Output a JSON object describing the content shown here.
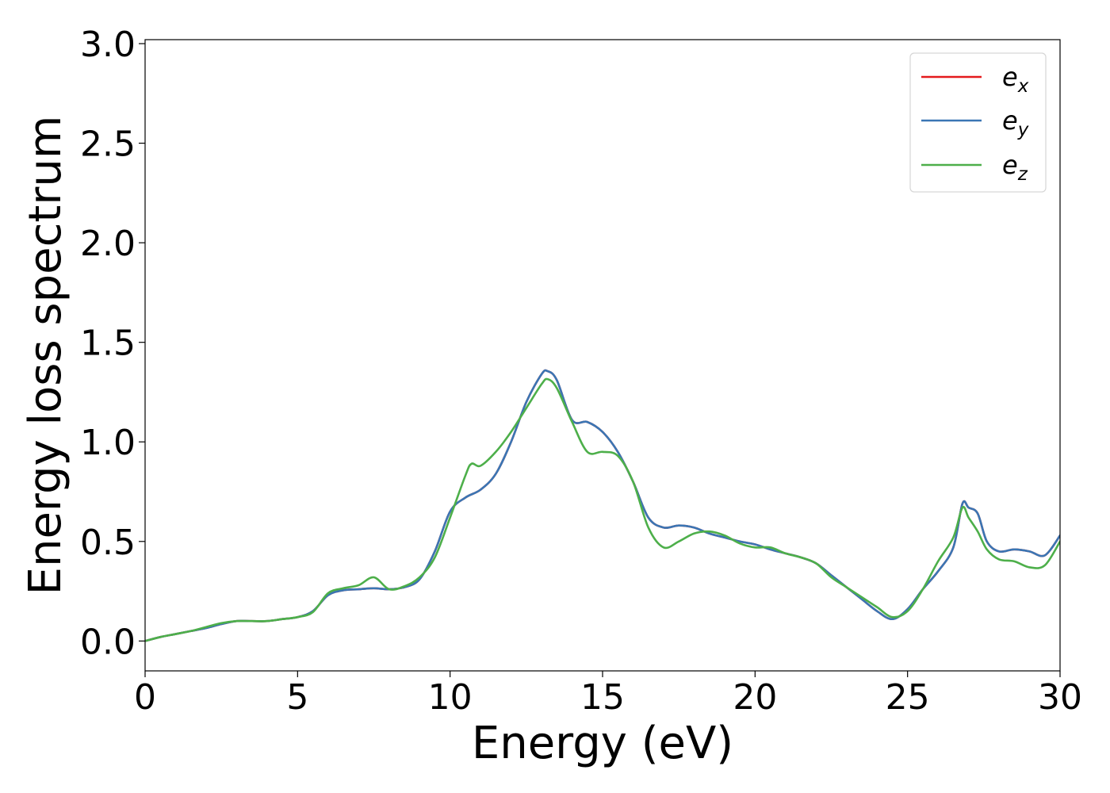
{
  "chart_data": {
    "type": "line",
    "title": "",
    "xlabel": "Energy (eV)",
    "ylabel": "Energy loss spectrum",
    "xlim": [
      0,
      30
    ],
    "ylim": [
      -0.15,
      3.02
    ],
    "xticks": [
      0,
      5,
      10,
      15,
      20,
      25,
      30
    ],
    "xtick_labels": [
      "0",
      "5",
      "10",
      "15",
      "20",
      "25",
      "30"
    ],
    "yticks": [
      0.0,
      0.5,
      1.0,
      1.5,
      2.0,
      2.5,
      3.0
    ],
    "ytick_labels": [
      "0.0",
      "0.5",
      "1.0",
      "1.5",
      "2.0",
      "2.5",
      "3.0"
    ],
    "grid": false,
    "legend_position": "top-right",
    "series": [
      {
        "name": "e_x",
        "label_base": "e",
        "label_sub": "x",
        "color": "#e41a1c",
        "x": [
          0,
          0.5,
          1,
          1.5,
          2,
          2.5,
          3,
          3.5,
          4,
          4.5,
          5,
          5.5,
          6,
          6.5,
          7,
          7.5,
          8,
          8.5,
          9,
          9.5,
          10,
          10.5,
          11,
          11.5,
          12,
          12.5,
          13,
          13.2,
          13.5,
          14,
          14.5,
          15,
          15.5,
          16,
          16.5,
          17,
          17.5,
          18,
          18.5,
          19,
          19.5,
          20,
          20.5,
          21,
          21.5,
          22,
          22.5,
          23,
          23.5,
          24,
          24.5,
          25,
          25.5,
          26,
          26.5,
          26.8,
          27,
          27.3,
          27.6,
          28,
          28.5,
          29,
          29.5,
          30
        ],
        "y": [
          0.0,
          0.02,
          0.035,
          0.05,
          0.065,
          0.085,
          0.1,
          0.1,
          0.1,
          0.11,
          0.12,
          0.15,
          0.23,
          0.255,
          0.26,
          0.265,
          0.26,
          0.27,
          0.31,
          0.45,
          0.65,
          0.72,
          0.76,
          0.84,
          1.0,
          1.2,
          1.34,
          1.355,
          1.31,
          1.11,
          1.1,
          1.05,
          0.95,
          0.8,
          0.62,
          0.57,
          0.58,
          0.57,
          0.54,
          0.52,
          0.5,
          0.485,
          0.46,
          0.44,
          0.42,
          0.39,
          0.33,
          0.27,
          0.21,
          0.15,
          0.11,
          0.16,
          0.26,
          0.35,
          0.47,
          0.69,
          0.67,
          0.64,
          0.5,
          0.45,
          0.46,
          0.45,
          0.43,
          0.53
        ]
      },
      {
        "name": "e_y",
        "label_base": "e",
        "label_sub": "y",
        "color": "#3a76b4",
        "x": [
          0,
          0.5,
          1,
          1.5,
          2,
          2.5,
          3,
          3.5,
          4,
          4.5,
          5,
          5.5,
          6,
          6.5,
          7,
          7.5,
          8,
          8.5,
          9,
          9.5,
          10,
          10.5,
          11,
          11.5,
          12,
          12.5,
          13,
          13.2,
          13.5,
          14,
          14.5,
          15,
          15.5,
          16,
          16.5,
          17,
          17.5,
          18,
          18.5,
          19,
          19.5,
          20,
          20.5,
          21,
          21.5,
          22,
          22.5,
          23,
          23.5,
          24,
          24.5,
          25,
          25.5,
          26,
          26.5,
          26.8,
          27,
          27.3,
          27.6,
          28,
          28.5,
          29,
          29.5,
          30
        ],
        "y": [
          0.0,
          0.02,
          0.035,
          0.05,
          0.065,
          0.085,
          0.1,
          0.1,
          0.1,
          0.11,
          0.12,
          0.15,
          0.23,
          0.255,
          0.26,
          0.265,
          0.26,
          0.27,
          0.31,
          0.45,
          0.65,
          0.72,
          0.76,
          0.84,
          1.0,
          1.2,
          1.34,
          1.355,
          1.31,
          1.11,
          1.1,
          1.05,
          0.95,
          0.8,
          0.62,
          0.57,
          0.58,
          0.57,
          0.54,
          0.52,
          0.5,
          0.485,
          0.46,
          0.44,
          0.42,
          0.39,
          0.33,
          0.27,
          0.21,
          0.15,
          0.11,
          0.16,
          0.26,
          0.35,
          0.47,
          0.69,
          0.67,
          0.64,
          0.5,
          0.45,
          0.46,
          0.45,
          0.43,
          0.53
        ]
      },
      {
        "name": "e_z",
        "label_base": "e",
        "label_sub": "z",
        "color": "#4daf4a",
        "x": [
          0,
          0.5,
          1,
          1.5,
          2,
          2.5,
          3,
          3.5,
          4,
          4.5,
          5,
          5.5,
          6,
          6.5,
          7,
          7.5,
          8,
          8.5,
          9,
          9.5,
          10,
          10.5,
          10.7,
          11,
          11.5,
          12,
          12.5,
          13,
          13.2,
          13.5,
          14,
          14.5,
          15,
          15.5,
          16,
          16.5,
          17,
          17.5,
          18,
          18.5,
          19,
          19.5,
          20,
          20.5,
          21,
          21.5,
          22,
          22.5,
          23,
          23.5,
          24,
          24.5,
          25,
          25.5,
          26,
          26.5,
          26.8,
          27,
          27.3,
          27.6,
          28,
          28.5,
          29,
          29.5,
          30
        ],
        "y": [
          0.0,
          0.02,
          0.035,
          0.05,
          0.07,
          0.09,
          0.1,
          0.1,
          0.1,
          0.11,
          0.12,
          0.145,
          0.24,
          0.265,
          0.28,
          0.32,
          0.26,
          0.275,
          0.32,
          0.42,
          0.62,
          0.83,
          0.89,
          0.88,
          0.95,
          1.05,
          1.17,
          1.29,
          1.315,
          1.27,
          1.1,
          0.95,
          0.95,
          0.93,
          0.8,
          0.57,
          0.47,
          0.5,
          0.54,
          0.55,
          0.53,
          0.49,
          0.47,
          0.47,
          0.44,
          0.42,
          0.39,
          0.32,
          0.27,
          0.22,
          0.17,
          0.12,
          0.15,
          0.26,
          0.4,
          0.52,
          0.67,
          0.62,
          0.55,
          0.46,
          0.41,
          0.4,
          0.37,
          0.38,
          0.5
        ]
      }
    ]
  }
}
